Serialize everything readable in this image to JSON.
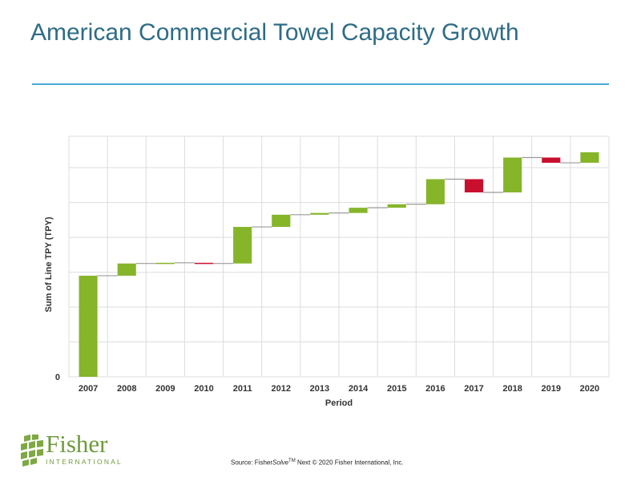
{
  "title": "American Commercial Towel Capacity Growth",
  "colors": {
    "title": "#2e6c86",
    "rule": "#4aa8d8",
    "increase": "#86b52a",
    "decrease": "#c8102e",
    "connector": "#9a9a9a",
    "grid": "#dddddd"
  },
  "chart_data": {
    "type": "waterfall",
    "title": "",
    "xlabel": "Period",
    "ylabel": "Sum of Line TPY (TPY)",
    "y_tick_labels": [
      "0"
    ],
    "ylim": [
      0,
      6.9
    ],
    "y_gridlines": [
      0,
      1,
      2,
      3,
      4,
      5,
      6
    ],
    "categories": [
      "2007",
      "2008",
      "2009",
      "2010",
      "2011",
      "2012",
      "2013",
      "2014",
      "2015",
      "2016",
      "2017",
      "2018",
      "2019",
      "2020"
    ],
    "changes": [
      2.9,
      0.35,
      0.02,
      -0.02,
      1.05,
      0.35,
      0.05,
      0.15,
      0.1,
      0.72,
      -0.38,
      1.0,
      -0.15,
      0.3
    ],
    "cumulative": [
      2.9,
      3.25,
      3.27,
      3.25,
      4.3,
      4.65,
      4.7,
      4.85,
      4.95,
      5.67,
      5.29,
      6.29,
      6.14,
      6.44
    ]
  },
  "logo": {
    "name": "Fisher",
    "subtitle": "INTERNATIONAL"
  },
  "source": {
    "prefix": "Source: Fisher",
    "italic": "Solve",
    "tm": "TM",
    "suffix": " Next © 2020 Fisher International, Inc."
  }
}
